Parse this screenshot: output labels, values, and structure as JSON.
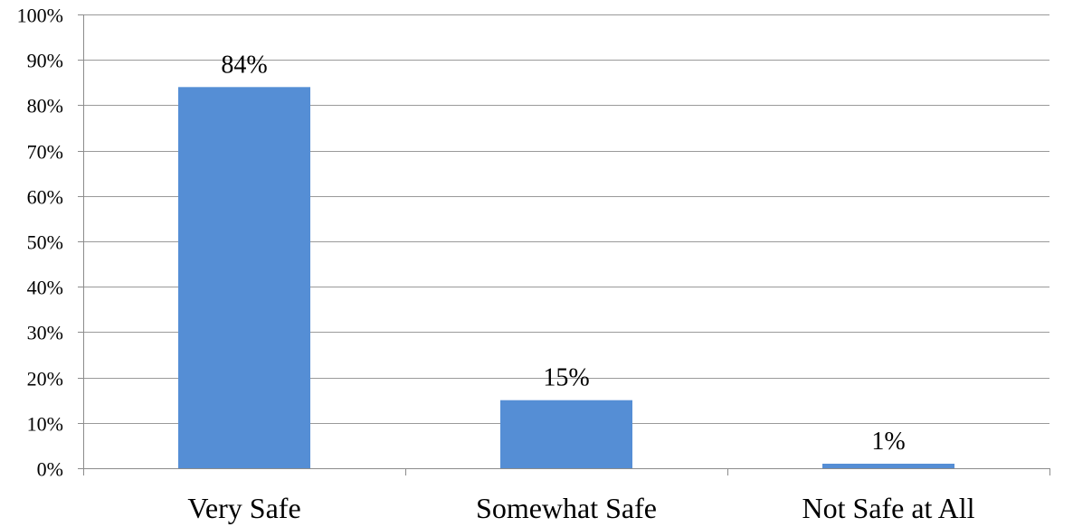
{
  "chart_data": {
    "type": "bar",
    "categories": [
      "Very Safe",
      "Somewhat Safe",
      "Not Safe at All"
    ],
    "values": [
      84,
      15,
      1
    ],
    "data_labels": [
      "84%",
      "15%",
      "1%"
    ],
    "ylim": [
      0,
      100
    ],
    "y_ticks": [
      0,
      10,
      20,
      30,
      40,
      50,
      60,
      70,
      80,
      90,
      100
    ],
    "y_tick_labels": [
      "0%",
      "10%",
      "20%",
      "30%",
      "40%",
      "50%",
      "60%",
      "70%",
      "80%",
      "90%",
      "100%"
    ],
    "grid": true,
    "legend": "none",
    "bar_color": "#558ed5",
    "title": "",
    "xlabel": "",
    "ylabel": ""
  }
}
